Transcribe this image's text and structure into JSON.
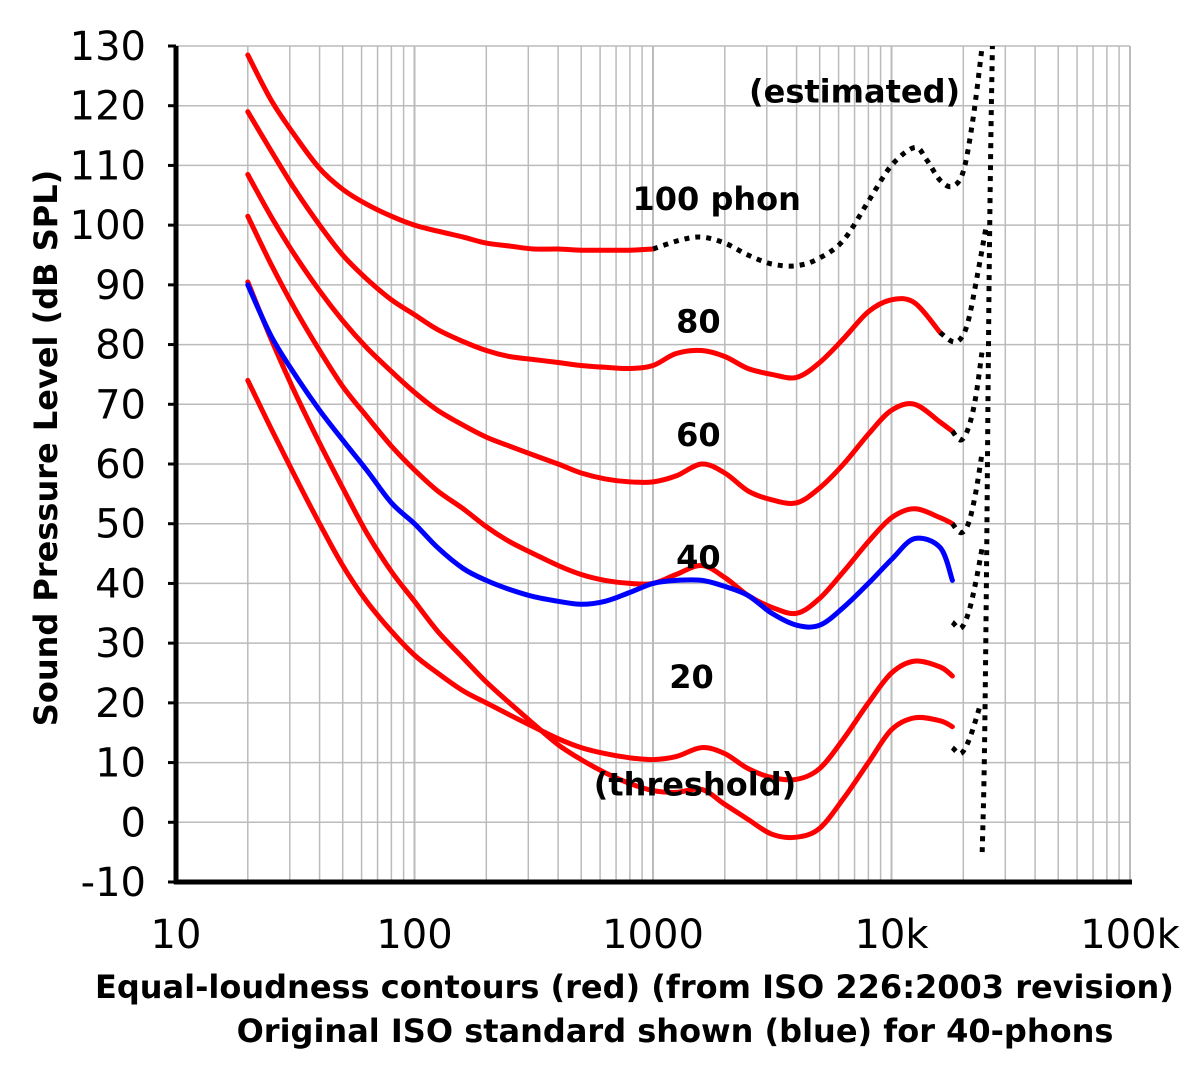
{
  "chart_data": {
    "type": "line",
    "x_scale": "log",
    "xlim": [
      10,
      100000
    ],
    "ylim": [
      -10,
      130
    ],
    "x_ticks": [
      {
        "value": 10,
        "label": "10"
      },
      {
        "value": 100,
        "label": "100"
      },
      {
        "value": 1000,
        "label": "1000"
      },
      {
        "value": 10000,
        "label": "10k"
      },
      {
        "value": 100000,
        "label": "100k"
      }
    ],
    "y_ticks": [
      130,
      120,
      110,
      100,
      90,
      80,
      70,
      60,
      50,
      40,
      30,
      20,
      10,
      0,
      -10
    ],
    "y_tick_labels": [
      "130",
      "120",
      "110",
      "100",
      "90",
      "80",
      "70",
      "60",
      "50",
      "40",
      "30",
      "20",
      "10",
      "0",
      "-10"
    ],
    "ylabel": "Sound Pressure Level (dB SPL)",
    "xlabel_line1": "Equal-loudness contours (red) (from ISO 226:2003 revision)",
    "xlabel_line2": "Original ISO standard shown (blue) for 40-phons",
    "grid": true,
    "colors": {
      "contour": "#ff0000",
      "original": "#0000ff",
      "estimated": "#000000",
      "grid": "#bbbbbb",
      "axis": "#000000"
    },
    "annotations": [
      {
        "text": "(estimated)",
        "x": 7000,
        "y": 120.5
      },
      {
        "text": "100 phon",
        "x": 1850,
        "y": 102.5
      },
      {
        "text": "80",
        "x": 1550,
        "y": 82
      },
      {
        "text": "60",
        "x": 1550,
        "y": 63
      },
      {
        "text": "40",
        "x": 1550,
        "y": 42.5
      },
      {
        "text": "20",
        "x": 1450,
        "y": 22.5
      },
      {
        "text": "(threshold)",
        "x": 1500,
        "y": 4.5
      }
    ],
    "series": [
      {
        "name": "100",
        "color": "#ff0000",
        "points": [
          [
            20,
            128.5
          ],
          [
            25,
            121
          ],
          [
            31.5,
            115
          ],
          [
            40,
            109.5
          ],
          [
            50,
            106
          ],
          [
            63,
            103.5
          ],
          [
            80,
            101.5
          ],
          [
            100,
            100
          ],
          [
            125,
            99
          ],
          [
            160,
            98
          ],
          [
            200,
            97
          ],
          [
            250,
            96.5
          ],
          [
            315,
            96
          ],
          [
            400,
            96
          ],
          [
            500,
            95.8
          ],
          [
            630,
            95.8
          ],
          [
            800,
            95.8
          ],
          [
            1000,
            96
          ]
        ]
      },
      {
        "name": "80",
        "color": "#ff0000",
        "points": [
          [
            20,
            119
          ],
          [
            25,
            112.5
          ],
          [
            31.5,
            106
          ],
          [
            40,
            100
          ],
          [
            50,
            95
          ],
          [
            63,
            91
          ],
          [
            80,
            87.5
          ],
          [
            100,
            85
          ],
          [
            125,
            82.5
          ],
          [
            160,
            80.5
          ],
          [
            200,
            79
          ],
          [
            250,
            78
          ],
          [
            315,
            77.5
          ],
          [
            400,
            77
          ],
          [
            500,
            76.5
          ],
          [
            630,
            76.2
          ],
          [
            800,
            76
          ],
          [
            1000,
            76.5
          ],
          [
            1250,
            78.5
          ],
          [
            1600,
            79
          ],
          [
            2000,
            78
          ],
          [
            2500,
            76
          ],
          [
            3150,
            75
          ],
          [
            4000,
            74.5
          ],
          [
            5000,
            77
          ],
          [
            6300,
            81
          ],
          [
            8000,
            85.5
          ],
          [
            10000,
            87.5
          ],
          [
            12500,
            87
          ],
          [
            16000,
            82
          ]
        ]
      },
      {
        "name": "60",
        "color": "#ff0000",
        "points": [
          [
            20,
            108.5
          ],
          [
            25,
            101.5
          ],
          [
            31.5,
            95
          ],
          [
            40,
            89
          ],
          [
            50,
            84
          ],
          [
            63,
            79.5
          ],
          [
            80,
            75.5
          ],
          [
            100,
            72
          ],
          [
            125,
            69
          ],
          [
            160,
            66.5
          ],
          [
            200,
            64.5
          ],
          [
            250,
            63
          ],
          [
            315,
            61.5
          ],
          [
            400,
            60
          ],
          [
            500,
            58.5
          ],
          [
            630,
            57.5
          ],
          [
            800,
            57
          ],
          [
            1000,
            57
          ],
          [
            1250,
            58
          ],
          [
            1600,
            60
          ],
          [
            2000,
            58.5
          ],
          [
            2500,
            55.5
          ],
          [
            3150,
            54
          ],
          [
            4000,
            53.5
          ],
          [
            5000,
            56
          ],
          [
            6300,
            60
          ],
          [
            8000,
            65
          ],
          [
            10000,
            69
          ],
          [
            12500,
            70
          ],
          [
            16000,
            67
          ],
          [
            18000,
            65.5
          ]
        ]
      },
      {
        "name": "40",
        "color": "#ff0000",
        "points": [
          [
            20,
            101.5
          ],
          [
            25,
            93.5
          ],
          [
            31.5,
            86
          ],
          [
            40,
            79
          ],
          [
            50,
            73
          ],
          [
            63,
            68
          ],
          [
            80,
            63
          ],
          [
            100,
            59
          ],
          [
            125,
            55.5
          ],
          [
            160,
            52.5
          ],
          [
            200,
            49.5
          ],
          [
            250,
            47
          ],
          [
            315,
            45
          ],
          [
            400,
            43
          ],
          [
            500,
            41.5
          ],
          [
            630,
            40.5
          ],
          [
            800,
            40
          ],
          [
            1000,
            40
          ],
          [
            1250,
            41.5
          ],
          [
            1600,
            43
          ],
          [
            2000,
            41
          ],
          [
            2500,
            38
          ],
          [
            3150,
            36
          ],
          [
            4000,
            35
          ],
          [
            5000,
            37.5
          ],
          [
            6300,
            42
          ],
          [
            8000,
            47
          ],
          [
            10000,
            51
          ],
          [
            12500,
            52.5
          ],
          [
            16000,
            51
          ],
          [
            18000,
            50
          ]
        ]
      },
      {
        "name": "20",
        "color": "#ff0000",
        "points": [
          [
            20,
            74
          ],
          [
            25,
            66
          ],
          [
            31.5,
            58
          ],
          [
            40,
            50
          ],
          [
            50,
            43
          ],
          [
            63,
            37
          ],
          [
            80,
            32
          ],
          [
            100,
            28
          ],
          [
            125,
            25
          ],
          [
            160,
            22
          ],
          [
            200,
            20
          ],
          [
            250,
            18
          ],
          [
            315,
            16
          ],
          [
            400,
            14
          ],
          [
            500,
            12.5
          ],
          [
            630,
            11.5
          ],
          [
            800,
            10.8
          ],
          [
            1000,
            10.5
          ],
          [
            1250,
            11
          ],
          [
            1600,
            12.5
          ],
          [
            2000,
            11.5
          ],
          [
            2500,
            9
          ],
          [
            3150,
            7.5
          ],
          [
            4000,
            7.2
          ],
          [
            5000,
            9
          ],
          [
            6300,
            14
          ],
          [
            8000,
            20
          ],
          [
            10000,
            25
          ],
          [
            12500,
            27
          ],
          [
            16000,
            26
          ],
          [
            18000,
            24.5
          ]
        ]
      },
      {
        "name": "threshold",
        "color": "#ff0000",
        "points": [
          [
            20,
            90.5
          ],
          [
            25,
            81
          ],
          [
            31.5,
            72
          ],
          [
            40,
            63.5
          ],
          [
            50,
            56
          ],
          [
            63,
            48.5
          ],
          [
            80,
            42
          ],
          [
            100,
            37
          ],
          [
            125,
            32
          ],
          [
            160,
            27.5
          ],
          [
            200,
            23.5
          ],
          [
            250,
            20
          ],
          [
            315,
            16.5
          ],
          [
            400,
            13
          ],
          [
            500,
            10.5
          ],
          [
            630,
            8.3
          ],
          [
            800,
            6.5
          ],
          [
            1000,
            5.3
          ],
          [
            1250,
            5
          ],
          [
            1600,
            5.5
          ],
          [
            2000,
            3
          ],
          [
            2500,
            0.5
          ],
          [
            3150,
            -2
          ],
          [
            4000,
            -2.5
          ],
          [
            5000,
            -1
          ],
          [
            6300,
            4
          ],
          [
            8000,
            10
          ],
          [
            10000,
            15.5
          ],
          [
            12500,
            17.5
          ],
          [
            16000,
            17
          ],
          [
            18000,
            16
          ]
        ]
      },
      {
        "name": "original-40",
        "color": "#0000ff",
        "points": [
          [
            20,
            90
          ],
          [
            25,
            81.5
          ],
          [
            31.5,
            75
          ],
          [
            40,
            69
          ],
          [
            50,
            64
          ],
          [
            63,
            59
          ],
          [
            80,
            53.5
          ],
          [
            100,
            50
          ],
          [
            125,
            46
          ],
          [
            160,
            42.5
          ],
          [
            200,
            40.5
          ],
          [
            250,
            39
          ],
          [
            315,
            37.8
          ],
          [
            400,
            37
          ],
          [
            500,
            36.5
          ],
          [
            630,
            37
          ],
          [
            800,
            38.5
          ],
          [
            1000,
            40
          ],
          [
            1250,
            40.5
          ],
          [
            1600,
            40.5
          ],
          [
            2000,
            39.5
          ],
          [
            2500,
            38
          ],
          [
            3150,
            35
          ],
          [
            4000,
            33
          ],
          [
            5000,
            33
          ],
          [
            6300,
            36
          ],
          [
            8000,
            40
          ],
          [
            10000,
            44
          ],
          [
            12500,
            47.5
          ],
          [
            16000,
            46
          ],
          [
            18000,
            40.5
          ]
        ]
      }
    ],
    "estimated_segments": [
      {
        "points": [
          [
            1000,
            96
          ],
          [
            1300,
            97.5
          ],
          [
            1600,
            98
          ],
          [
            2000,
            97
          ],
          [
            2500,
            95
          ],
          [
            3150,
            93.5
          ],
          [
            4000,
            93.2
          ],
          [
            5000,
            94.5
          ],
          [
            6300,
            97.5
          ],
          [
            8000,
            104
          ],
          [
            10000,
            110
          ],
          [
            12500,
            113
          ],
          [
            14000,
            111
          ],
          [
            16000,
            107.5
          ],
          [
            18000,
            106.5
          ],
          [
            20000,
            109
          ],
          [
            22000,
            118
          ],
          [
            24000,
            130
          ]
        ]
      },
      {
        "points": [
          [
            16000,
            82
          ],
          [
            18000,
            80.5
          ],
          [
            19500,
            81
          ],
          [
            21000,
            84
          ],
          [
            23000,
            92
          ],
          [
            25000,
            100
          ]
        ]
      },
      {
        "points": [
          [
            18000,
            65.5
          ],
          [
            19500,
            64
          ],
          [
            21000,
            66
          ],
          [
            22500,
            71
          ],
          [
            24000,
            79
          ]
        ]
      },
      {
        "points": [
          [
            18000,
            50
          ],
          [
            19500,
            48.5
          ],
          [
            21000,
            50
          ],
          [
            22500,
            55
          ],
          [
            24000,
            62
          ]
        ]
      },
      {
        "points": [
          [
            18000,
            33.5
          ],
          [
            19500,
            32.5
          ],
          [
            21000,
            35
          ],
          [
            22500,
            40
          ],
          [
            24000,
            46
          ]
        ]
      },
      {
        "points": [
          [
            18000,
            12.5
          ],
          [
            19500,
            11.5
          ],
          [
            21000,
            13.5
          ],
          [
            22500,
            17
          ],
          [
            23500,
            19.5
          ]
        ]
      },
      {
        "points": [
          [
            24000,
            -5
          ],
          [
            24500,
            10
          ],
          [
            25000,
            40
          ],
          [
            25500,
            80
          ],
          [
            26000,
            110
          ],
          [
            26500,
            130
          ]
        ]
      }
    ]
  }
}
